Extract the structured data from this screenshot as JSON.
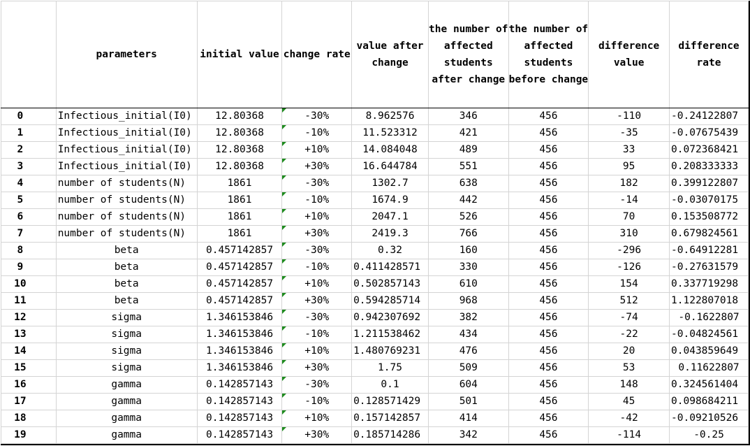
{
  "headers": {
    "index": "",
    "parameters": "parameters",
    "initial_value": "initial value",
    "change_rate": "change rate",
    "value_after_change": "value after change",
    "affected_after": "the number of affected students after change",
    "affected_before": "the number of affected students before change",
    "difference_value": "difference value",
    "difference_rate": "difference rate"
  },
  "rows": [
    {
      "idx": "0",
      "param": "Infectious_initial(I0)",
      "initial": "12.80368",
      "rate": "-30%",
      "after": "8.962576",
      "aff_after": "346",
      "aff_before": "456",
      "diff": "-110",
      "diff_rate": "-0.24122807"
    },
    {
      "idx": "1",
      "param": "Infectious_initial(I0)",
      "initial": "12.80368",
      "rate": "-10%",
      "after": "11.523312",
      "aff_after": "421",
      "aff_before": "456",
      "diff": "-35",
      "diff_rate": "-0.07675439"
    },
    {
      "idx": "2",
      "param": "Infectious_initial(I0)",
      "initial": "12.80368",
      "rate": "+10%",
      "after": "14.084048",
      "aff_after": "489",
      "aff_before": "456",
      "diff": "33",
      "diff_rate": "0.072368421"
    },
    {
      "idx": "3",
      "param": "Infectious_initial(I0)",
      "initial": "12.80368",
      "rate": "+30%",
      "after": "16.644784",
      "aff_after": "551",
      "aff_before": "456",
      "diff": "95",
      "diff_rate": "0.208333333"
    },
    {
      "idx": "4",
      "param": "number of students(N)",
      "initial": "1861",
      "rate": "-30%",
      "after": "1302.7",
      "aff_after": "638",
      "aff_before": "456",
      "diff": "182",
      "diff_rate": "0.399122807"
    },
    {
      "idx": "5",
      "param": "number of students(N)",
      "initial": "1861",
      "rate": "-10%",
      "after": "1674.9",
      "aff_after": "442",
      "aff_before": "456",
      "diff": "-14",
      "diff_rate": "-0.03070175"
    },
    {
      "idx": "6",
      "param": "number of students(N)",
      "initial": "1861",
      "rate": "+10%",
      "after": "2047.1",
      "aff_after": "526",
      "aff_before": "456",
      "diff": "70",
      "diff_rate": "0.153508772"
    },
    {
      "idx": "7",
      "param": "number of students(N)",
      "initial": "1861",
      "rate": "+30%",
      "after": "2419.3",
      "aff_after": "766",
      "aff_before": "456",
      "diff": "310",
      "diff_rate": "0.679824561"
    },
    {
      "idx": "8",
      "param": "beta",
      "initial": "0.457142857",
      "rate": "-30%",
      "after": "0.32",
      "aff_after": "160",
      "aff_before": "456",
      "diff": "-296",
      "diff_rate": "-0.64912281"
    },
    {
      "idx": "9",
      "param": "beta",
      "initial": "0.457142857",
      "rate": "-10%",
      "after": "0.411428571",
      "aff_after": "330",
      "aff_before": "456",
      "diff": "-126",
      "diff_rate": "-0.27631579"
    },
    {
      "idx": "10",
      "param": "beta",
      "initial": "0.457142857",
      "rate": "+10%",
      "after": "0.502857143",
      "aff_after": "610",
      "aff_before": "456",
      "diff": "154",
      "diff_rate": "0.337719298"
    },
    {
      "idx": "11",
      "param": "beta",
      "initial": "0.457142857",
      "rate": "+30%",
      "after": "0.594285714",
      "aff_after": "968",
      "aff_before": "456",
      "diff": "512",
      "diff_rate": "1.122807018"
    },
    {
      "idx": "12",
      "param": "sigma",
      "initial": "1.346153846",
      "rate": "-30%",
      "after": "0.942307692",
      "aff_after": "382",
      "aff_before": "456",
      "diff": "-74",
      "diff_rate": "-0.1622807"
    },
    {
      "idx": "13",
      "param": "sigma",
      "initial": "1.346153846",
      "rate": "-10%",
      "after": "1.211538462",
      "aff_after": "434",
      "aff_before": "456",
      "diff": "-22",
      "diff_rate": "-0.04824561"
    },
    {
      "idx": "14",
      "param": "sigma",
      "initial": "1.346153846",
      "rate": "+10%",
      "after": "1.480769231",
      "aff_after": "476",
      "aff_before": "456",
      "diff": "20",
      "diff_rate": "0.043859649"
    },
    {
      "idx": "15",
      "param": "sigma",
      "initial": "1.346153846",
      "rate": "+30%",
      "after": "1.75",
      "aff_after": "509",
      "aff_before": "456",
      "diff": "53",
      "diff_rate": "0.11622807"
    },
    {
      "idx": "16",
      "param": "gamma",
      "initial": "0.142857143",
      "rate": "-30%",
      "after": "0.1",
      "aff_after": "604",
      "aff_before": "456",
      "diff": "148",
      "diff_rate": "0.324561404"
    },
    {
      "idx": "17",
      "param": "gamma",
      "initial": "0.142857143",
      "rate": "-10%",
      "after": "0.128571429",
      "aff_after": "501",
      "aff_before": "456",
      "diff": "45",
      "diff_rate": "0.098684211"
    },
    {
      "idx": "18",
      "param": "gamma",
      "initial": "0.142857143",
      "rate": "+10%",
      "after": "0.157142857",
      "aff_after": "414",
      "aff_before": "456",
      "diff": "-42",
      "diff_rate": "-0.09210526"
    },
    {
      "idx": "19",
      "param": "gamma",
      "initial": "0.142857143",
      "rate": "+30%",
      "after": "0.185714286",
      "aff_after": "342",
      "aff_before": "456",
      "diff": "-114",
      "diff_rate": "-0.25"
    }
  ]
}
